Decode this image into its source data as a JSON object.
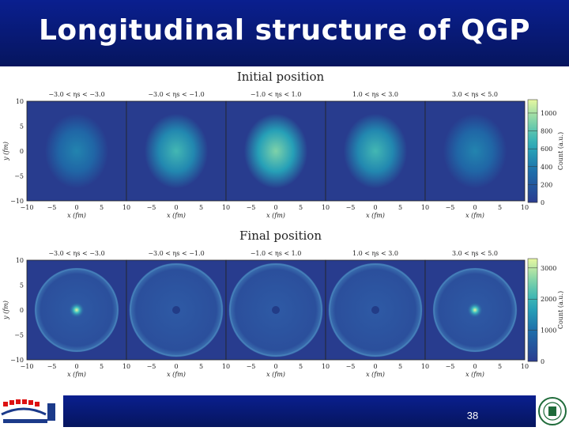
{
  "slide": {
    "title": "Longitudinal structure of QGP",
    "page_number": "38"
  },
  "colors": {
    "header": "#0a1f8f",
    "panel_background": "#283c8e",
    "colormap_low": "#2a3c90",
    "colormap_high": "#e7f7a0"
  },
  "chart_data": [
    {
      "type": "heatmap",
      "title": "Initial position",
      "xlabel": "x (fm)",
      "ylabel": "y (fm)",
      "xlim": [
        -10,
        10
      ],
      "ylim": [
        -10,
        10
      ],
      "x_ticks": [
        "−10",
        "−5",
        "0",
        "5",
        "10"
      ],
      "y_ticks": [
        "10",
        "5",
        "0",
        "−5",
        "−10"
      ],
      "colorbar_label": "Count (a.u.)",
      "colorbar_ticks": [
        "1000",
        "800",
        "600",
        "400",
        "200",
        "0"
      ],
      "colorbar_range": [
        0,
        1150
      ],
      "panels": [
        {
          "label": "−3.0 < ηs < −3.0",
          "peak_count": 450
        },
        {
          "label": "−3.0 < ηs < −1.0",
          "peak_count": 720
        },
        {
          "label": "−1.0 < ηs < 1.0",
          "peak_count": 900
        },
        {
          "label": "1.0 < ηs < 3.0",
          "peak_count": 720
        },
        {
          "label": "3.0 < ηs < 5.0",
          "peak_count": 450
        }
      ]
    },
    {
      "type": "heatmap",
      "title": "Final position",
      "xlabel": "x (fm)",
      "ylabel": "y (fm)",
      "xlim": [
        -10,
        10
      ],
      "ylim": [
        -10,
        10
      ],
      "x_ticks": [
        "−10",
        "−5",
        "0",
        "5",
        "10"
      ],
      "y_ticks": [
        "10",
        "5",
        "0",
        "−5",
        "−10"
      ],
      "colorbar_label": "Count (a.u.)",
      "colorbar_ticks": [
        "3000",
        "2000",
        "1000",
        "0"
      ],
      "colorbar_range": [
        0,
        3300
      ],
      "panels": [
        {
          "label": "−3.0 < ηs < −3.0",
          "center": "hot-spot",
          "ring_radius_fm": 8.5
        },
        {
          "label": "−3.0 < ηs < −1.0",
          "center": "dark",
          "ring_radius_fm": 9.5
        },
        {
          "label": "−1.0 < ηs < 1.0",
          "center": "dark",
          "ring_radius_fm": 9.5
        },
        {
          "label": "1.0 < ηs < 3.0",
          "center": "dark",
          "ring_radius_fm": 9.5
        },
        {
          "label": "3.0 < ηs < 5.0",
          "center": "hot-spot",
          "ring_radius_fm": 8.5
        }
      ]
    }
  ]
}
